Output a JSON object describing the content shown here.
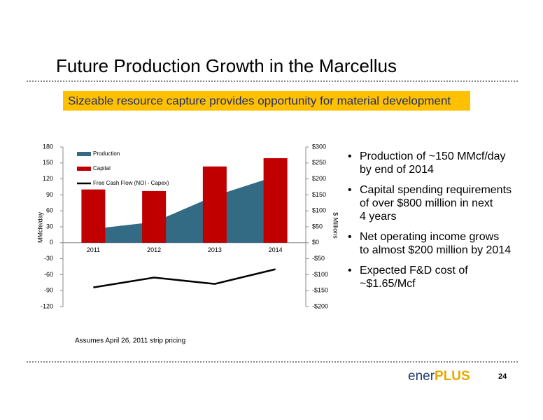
{
  "slide": {
    "title": "Future Production Growth in the Marcellus",
    "subtitle": "Sizeable resource capture provides opportunity for material development",
    "bullets": [
      [
        "Production of ~150 MMcf/day",
        "by end of 2014"
      ],
      [
        "Capital spending requirements",
        "of over $800 million in next",
        "4 years"
      ],
      [
        "Net operating income grows",
        "to almost $200 million by 2014"
      ],
      [
        "Expected F&D cost of",
        "~$1.65/Mcf"
      ]
    ],
    "footnote": "Assumes April 26, 2011 strip pricing",
    "logo": [
      "ener",
      "PLUS"
    ],
    "page_number": "24"
  },
  "chart_data": {
    "type": "combo",
    "categories": [
      "2011",
      "2012",
      "2013",
      "2014"
    ],
    "series": [
      {
        "name": "Production",
        "type": "area",
        "color": "#336a84",
        "values": [
          26,
          39,
          88,
          125
        ]
      },
      {
        "name": "Capital",
        "type": "bar",
        "axis": "y2",
        "color": "#c00000",
        "values": [
          167,
          162,
          239,
          265
        ]
      },
      {
        "name": "Free Cash Flow (NOI - Capex)",
        "type": "line",
        "axis": "y2",
        "color": "#000000",
        "values": [
          -140,
          -109,
          -129,
          -83
        ]
      }
    ],
    "y_label": "MMcfe/day",
    "y2_label": "$ Millions",
    "ylim": [
      -120,
      180
    ],
    "yticks": [
      -120,
      -90,
      -60,
      -30,
      0,
      30,
      60,
      90,
      120,
      150,
      180
    ],
    "y2lim": [
      -200,
      300
    ],
    "y2ticks": [
      {
        "value": -200,
        "label": "-$200"
      },
      {
        "value": -150,
        "label": "-$150"
      },
      {
        "value": -100,
        "label": "-$100"
      },
      {
        "value": -50,
        "label": "-$50"
      },
      {
        "value": 0,
        "label": "$0"
      },
      {
        "value": 50,
        "label": "$50"
      },
      {
        "value": 100,
        "label": "$100"
      },
      {
        "value": 150,
        "label": "$150"
      },
      {
        "value": 200,
        "label": "$200"
      },
      {
        "value": 250,
        "label": "$250"
      },
      {
        "value": 300,
        "label": "$300"
      }
    ],
    "grid": false,
    "legend": "top-left"
  }
}
